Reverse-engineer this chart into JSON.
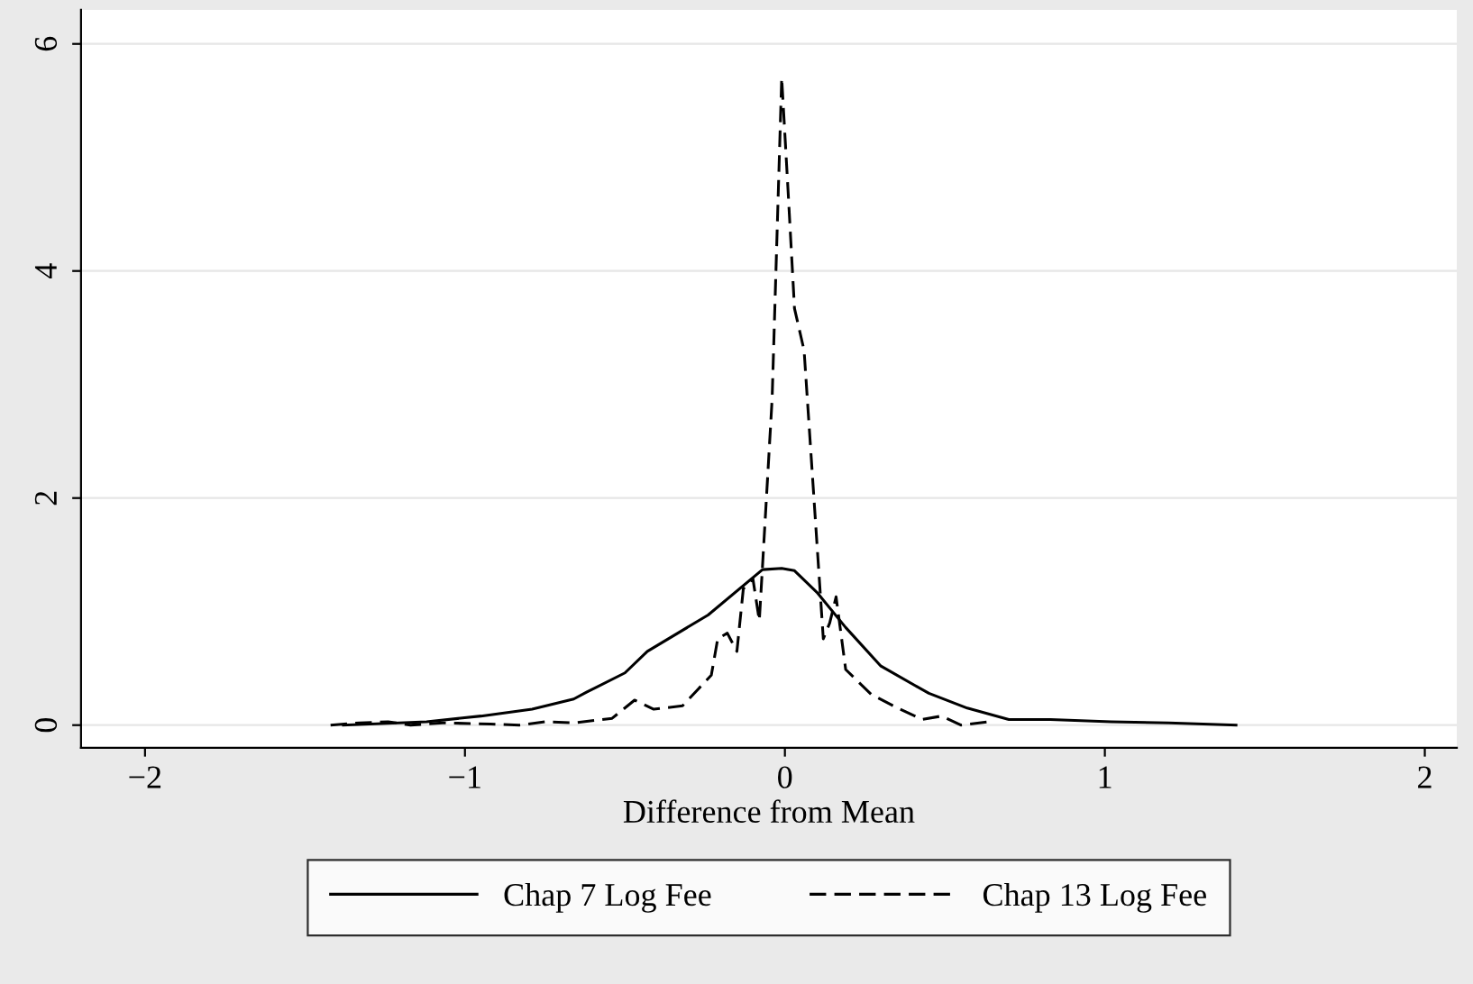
{
  "chart_data": {
    "type": "line",
    "xlabel": "Difference from Mean",
    "xlim": [
      -2.2,
      2.1
    ],
    "ylim": [
      -0.2,
      6.3
    ],
    "xticks": [
      {
        "value": -2,
        "label": "−2"
      },
      {
        "value": -1,
        "label": "−1"
      },
      0,
      1,
      2
    ],
    "yticks": [
      0,
      2,
      4,
      6
    ],
    "grid": "y",
    "legend": "bottom",
    "marker": "none",
    "series": [
      {
        "name": "Chap 7 Log Fee",
        "color": "#000000",
        "line_style": "solid",
        "x": [
          -1.38,
          -1.12,
          -0.95,
          -0.79,
          -0.66,
          -0.62,
          -0.5,
          -0.43,
          -0.24,
          -0.07,
          -0.01,
          0.03,
          0.1,
          0.19,
          0.3,
          0.45,
          0.57,
          0.7,
          0.83,
          1.02,
          1.2,
          1.41
        ],
        "values": [
          0.0,
          0.03,
          0.08,
          0.14,
          0.23,
          0.29,
          0.46,
          0.65,
          0.97,
          1.37,
          1.38,
          1.36,
          1.17,
          0.86,
          0.52,
          0.28,
          0.15,
          0.05,
          0.05,
          0.03,
          0.02,
          0.0
        ]
      },
      {
        "name": "Chap 13 Log Fee",
        "color": "#000000",
        "line_style": "dashed",
        "x": [
          -1.42,
          -1.33,
          -1.24,
          -1.17,
          -1.07,
          -0.92,
          -0.83,
          -0.75,
          -0.66,
          -0.54,
          -0.47,
          -0.41,
          -0.32,
          -0.23,
          -0.21,
          -0.18,
          -0.15,
          -0.13,
          -0.1,
          -0.08,
          -0.07,
          -0.04,
          -0.01,
          0.01,
          0.03,
          0.06,
          0.12,
          0.14,
          0.16,
          0.19,
          0.27,
          0.36,
          0.43,
          0.49,
          0.55,
          0.64
        ],
        "values": [
          0.0,
          0.02,
          0.03,
          0.0,
          0.02,
          0.01,
          0.0,
          0.03,
          0.02,
          0.06,
          0.22,
          0.14,
          0.17,
          0.44,
          0.76,
          0.81,
          0.65,
          1.2,
          1.29,
          0.92,
          1.4,
          2.87,
          5.7,
          4.7,
          3.67,
          3.3,
          0.76,
          0.9,
          1.13,
          0.49,
          0.27,
          0.14,
          0.05,
          0.08,
          0.0,
          0.03
        ]
      }
    ]
  }
}
